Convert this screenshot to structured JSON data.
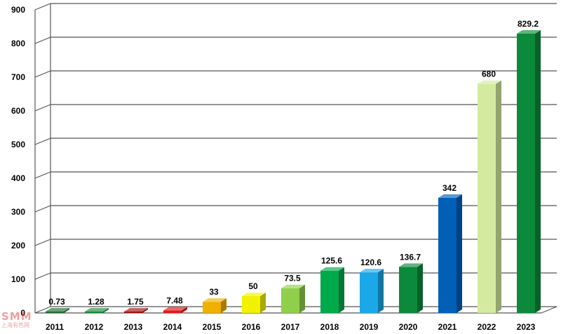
{
  "chart_data": {
    "type": "bar",
    "categories": [
      "2011",
      "2012",
      "2013",
      "2014",
      "2015",
      "2016",
      "2017",
      "2018",
      "2019",
      "2020",
      "2021",
      "2022",
      "2023"
    ],
    "values": [
      0.73,
      1.28,
      1.75,
      7.48,
      33,
      50,
      73.5,
      125.6,
      120.6,
      136.7,
      342,
      680,
      829.2
    ],
    "value_labels": [
      "0.73",
      "1.28",
      "1.75",
      "7.48",
      "33",
      "50",
      "73.5",
      "125.6",
      "120.6",
      "136.7",
      "342",
      "680",
      "829.2"
    ],
    "colors": [
      "#1f6b2e",
      "#1a8a3a",
      "#a01010",
      "#e01818",
      "#f0b000",
      "#f2f200",
      "#8fcf4a",
      "#00aa4a",
      "#1aa8e8",
      "#0a8a3a",
      "#0060b8",
      "#d4eaa0",
      "#0a8a3a"
    ],
    "ylim": [
      0,
      900
    ],
    "yticks": [
      0,
      100,
      200,
      300,
      400,
      500,
      600,
      700,
      800,
      900
    ],
    "grid": true,
    "title": "",
    "xlabel": "",
    "ylabel": ""
  },
  "watermark": {
    "mark": "SMM",
    "sub": "上海有色网"
  }
}
